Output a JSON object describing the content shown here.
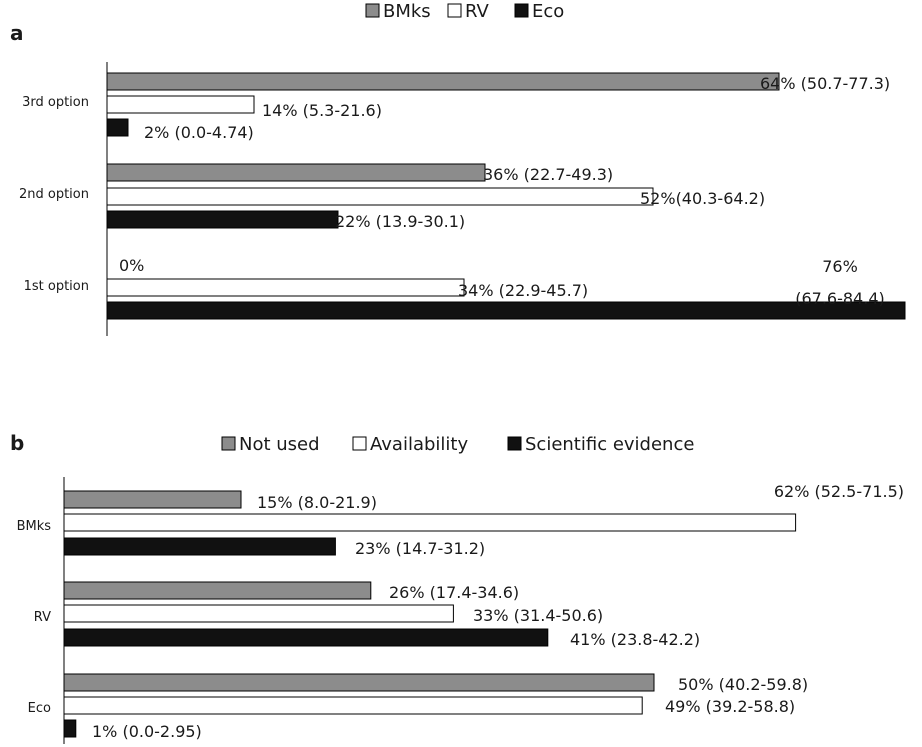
{
  "chart_data": [
    {
      "panel": "a",
      "type": "bar",
      "orientation": "horizontal",
      "categories": [
        "3rd option",
        "2nd option",
        "1st option"
      ],
      "series": [
        {
          "name": "BMks",
          "color": "#8c8c8c",
          "values": [
            64,
            36,
            0
          ],
          "labels": [
            "64% (50.7-77.3)",
            "36% (22.7-49.3)",
            "0%"
          ]
        },
        {
          "name": "RV",
          "color": "#ffffff",
          "values": [
            14,
            52,
            34
          ],
          "labels": [
            "14% (5.3-21.6)",
            "52%(40.3-64.2)",
            "34% (22.9-45.7)"
          ]
        },
        {
          "name": "Eco",
          "color": "#111111",
          "values": [
            2,
            22,
            76
          ],
          "labels": [
            "2% (0.0-4.74)",
            "22% (13.9-30.1)",
            "76% (67.6-84.4)"
          ]
        }
      ],
      "legend": "top-center",
      "grid": false
    },
    {
      "panel": "b",
      "type": "bar",
      "orientation": "horizontal",
      "categories": [
        "BMks",
        "RV",
        "Eco"
      ],
      "series": [
        {
          "name": "Not used",
          "color": "#8c8c8c",
          "values": [
            15,
            26,
            50
          ],
          "labels": [
            "15% (8.0-21.9)",
            "26% (17.4-34.6)",
            "50% (40.2-59.8)"
          ]
        },
        {
          "name": "Availability",
          "color": "#ffffff",
          "values": [
            62,
            33,
            49
          ],
          "labels": [
            "62% (52.5-71.5)",
            "33% (31.4-50.6)",
            "49% (39.2-58.8)"
          ]
        },
        {
          "name": "Scientific evidence",
          "color": "#111111",
          "values": [
            23,
            41,
            1
          ],
          "labels": [
            "23% (14.7-31.2)",
            "41% (23.8-42.2)",
            "1% (0.0-2.95)"
          ]
        }
      ],
      "legend": "top-center",
      "grid": false
    }
  ]
}
